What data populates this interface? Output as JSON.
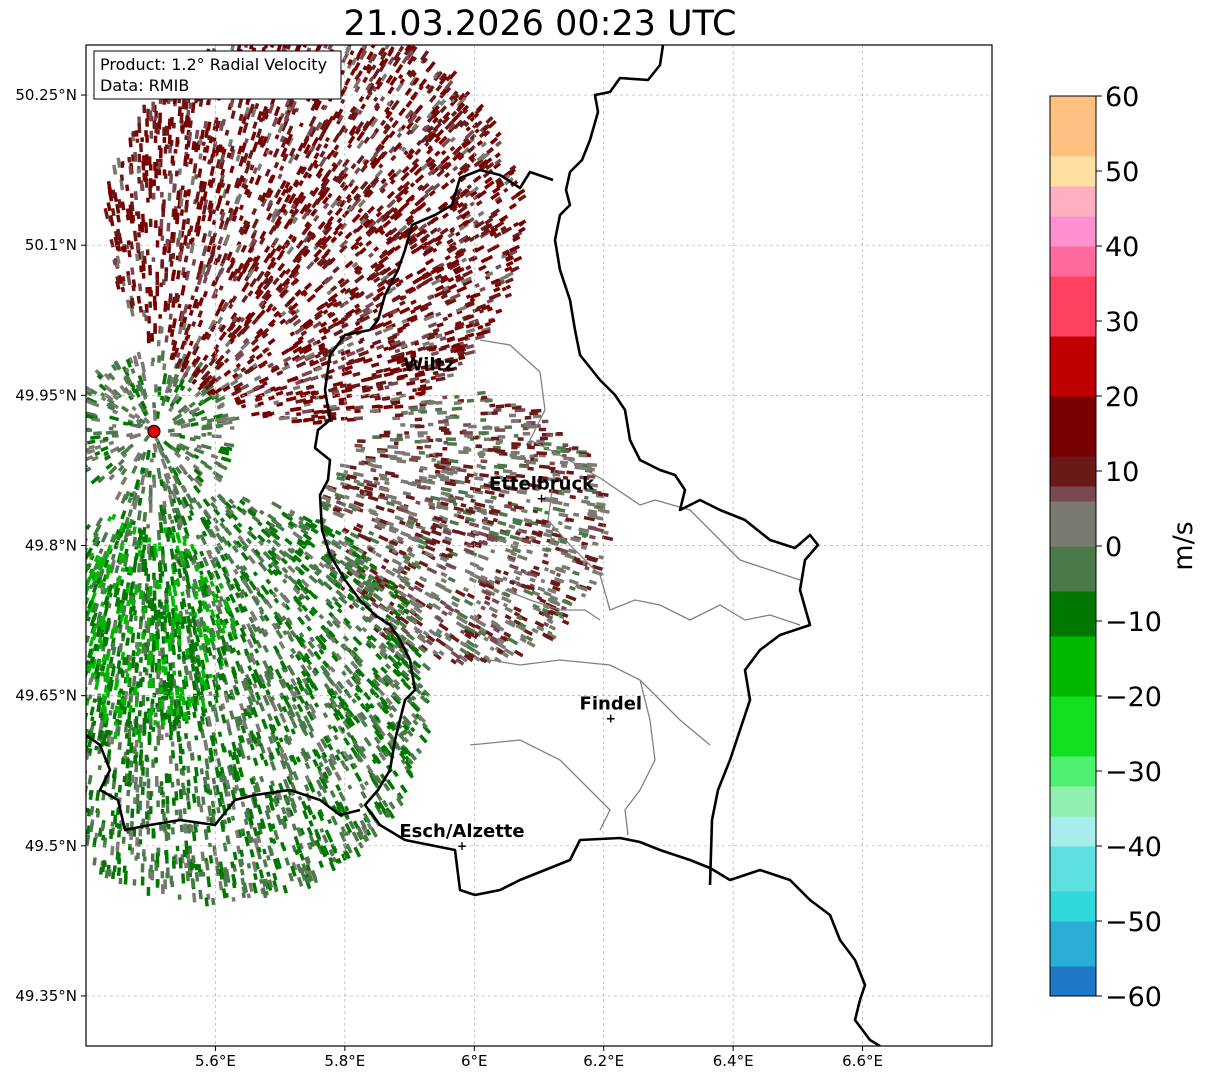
{
  "title": "21.03.2026 00:23 UTC",
  "info_box": {
    "product_line": "Product: 1.2° Radial Velocity",
    "data_line": "Data: RMIB"
  },
  "chart_data": {
    "type": "heatmap",
    "title": "21.03.2026 00:23 UTC",
    "xlim": [
      5.4,
      6.8
    ],
    "ylim": [
      49.3,
      50.3
    ],
    "x_ticks": [
      5.6,
      5.8,
      6.0,
      6.2,
      6.4,
      6.6
    ],
    "x_tick_labels": [
      "5.6°E",
      "5.8°E",
      "6°E",
      "6.2°E",
      "6.4°E",
      "6.6°E"
    ],
    "y_ticks": [
      49.35,
      49.5,
      49.65,
      49.8,
      49.95,
      50.1,
      50.25
    ],
    "y_tick_labels": [
      "49.35°N",
      "49.5°N",
      "49.65°N",
      "49.8°N",
      "49.95°N",
      "50.1°N",
      "50.25°N"
    ],
    "grid": true,
    "radar_site": {
      "lon": 5.505,
      "lat": 49.914
    },
    "cities": [
      {
        "name": "Wiltz",
        "lon": 5.93,
        "lat": 49.966
      },
      {
        "name": "Ettelbruck",
        "lon": 6.104,
        "lat": 49.847
      },
      {
        "name": "Findel",
        "lon": 6.211,
        "lat": 49.627
      },
      {
        "name": "Esch/Alzette",
        "lon": 5.981,
        "lat": 49.5
      }
    ],
    "colorbar": {
      "label": "m/s",
      "min": -60,
      "max": 60,
      "ticks": [
        60,
        50,
        40,
        30,
        20,
        10,
        0,
        -10,
        -20,
        -30,
        -40,
        -50,
        -60
      ],
      "tick_labels": [
        "60",
        "50",
        "40",
        "30",
        "20",
        "10",
        "0",
        "−10",
        "−20",
        "−30",
        "−40",
        "−50",
        "−60"
      ],
      "stops": [
        {
          "value": -60,
          "color": "#1f78c8"
        },
        {
          "value": -56,
          "color": "#2aaed6"
        },
        {
          "value": -50,
          "color": "#30d8dc"
        },
        {
          "value": -45,
          "color": "#5ee0e0"
        },
        {
          "value": -40,
          "color": "#a8ecec"
        },
        {
          "value": -36,
          "color": "#c8f0f0"
        },
        {
          "value": -35,
          "color": "#90f0b0"
        },
        {
          "value": -31,
          "color": "#50f070"
        },
        {
          "value": -27,
          "color": "#10e020"
        },
        {
          "value": -20,
          "color": "#00b800"
        },
        {
          "value": -12,
          "color": "#007800"
        },
        {
          "value": -6,
          "color": "#4a7a4a"
        },
        {
          "value": 0,
          "color": "#7a7a72"
        },
        {
          "value": 6,
          "color": "#7a4850"
        },
        {
          "value": 8,
          "color": "#6a1818"
        },
        {
          "value": 12,
          "color": "#780000"
        },
        {
          "value": 20,
          "color": "#c00000"
        },
        {
          "value": 28,
          "color": "#f00000"
        },
        {
          "value": 29,
          "color": "#ff4060"
        },
        {
          "value": 36,
          "color": "#ff6a9a"
        },
        {
          "value": 40,
          "color": "#ff90d0"
        },
        {
          "value": 44,
          "color": "#ffb0c0"
        },
        {
          "value": 48,
          "color": "#ffe0a0"
        },
        {
          "value": 53,
          "color": "#ffc080"
        },
        {
          "value": 60,
          "color": "#ff9a50"
        }
      ]
    },
    "echo_regions": [
      {
        "name": "inbound-near-radar",
        "center": [
          5.505,
          49.914
        ],
        "radius_deg": 0.12,
        "value": -2
      },
      {
        "name": "outbound-north",
        "center": [
          5.75,
          50.12
        ],
        "radius_deg": 0.32,
        "value": 12
      },
      {
        "name": "outbound-east",
        "center": [
          5.98,
          49.82
        ],
        "radius_deg": 0.22,
        "value": 5
      },
      {
        "name": "inbound-south",
        "center": [
          5.6,
          49.65
        ],
        "radius_deg": 0.33,
        "value": -5
      },
      {
        "name": "inbound-southwest",
        "center": [
          5.45,
          49.72
        ],
        "radius_deg": 0.18,
        "value": -12
      }
    ]
  }
}
